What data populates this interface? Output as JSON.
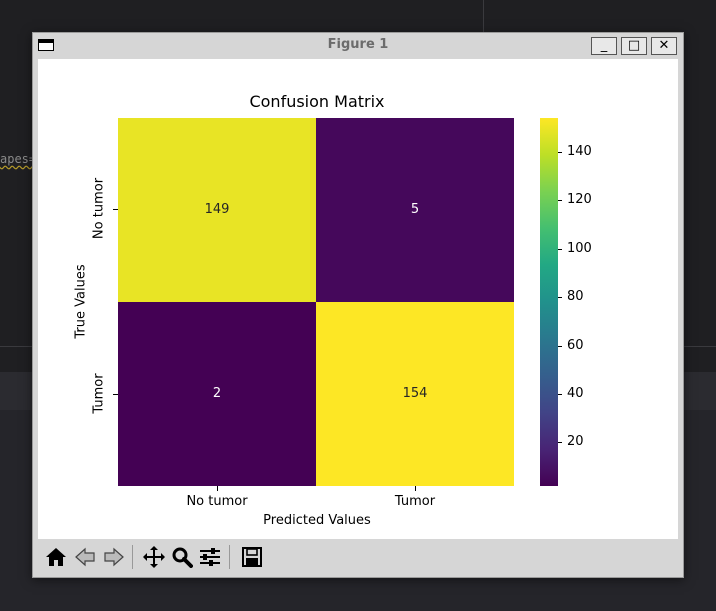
{
  "window": {
    "title": "Figure 1",
    "minimize_glyph": "_",
    "maximize_glyph": "□",
    "close_glyph": "✕"
  },
  "background_code": {
    "fragment": "apes="
  },
  "chart_data": {
    "type": "heatmap",
    "title": "Confusion Matrix",
    "xlabel": "Predicted Values",
    "ylabel": "True Values",
    "x_categories": [
      "No tumor",
      "Tumor"
    ],
    "y_categories": [
      "No tumor",
      "Tumor"
    ],
    "values": [
      [
        149,
        5
      ],
      [
        2,
        154
      ]
    ],
    "colormap": "viridis",
    "colorbar": {
      "ticks": [
        20,
        40,
        60,
        80,
        100,
        120,
        140
      ],
      "range": [
        2,
        154
      ]
    }
  },
  "toolbar": {
    "tools": [
      "home-icon",
      "back-icon",
      "forward-icon",
      "pan-icon",
      "zoom-icon",
      "configure-icon",
      "save-icon"
    ]
  },
  "colors": {
    "low": "#440154",
    "high": "#fde725",
    "high_alt": "#f1e51d"
  }
}
